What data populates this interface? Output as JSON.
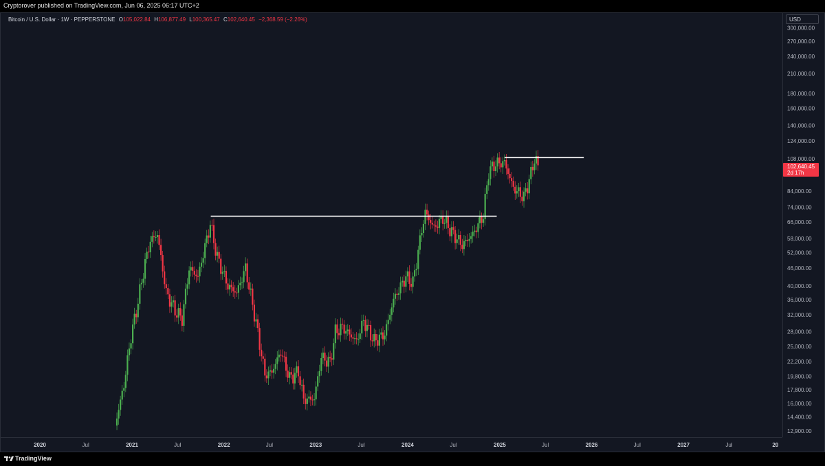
{
  "header": {
    "published_text": "Cryptorover published on TradingView.com, Jun 06, 2025 06:17 UTC+2"
  },
  "legend": {
    "symbol": "Bitcoin / U.S. Dollar · 1W · PEPPERSTONE",
    "open_label": "O",
    "open": "105,022.84",
    "high_label": "H",
    "high": "106,877.49",
    "low_label": "L",
    "low": "100,365.47",
    "close_label": "C",
    "close": "102,640.45",
    "change": "−2,368.59 (−2.26%)"
  },
  "currency_button": "USD",
  "last_price": {
    "value": "102,640.45",
    "countdown": "2d 17h"
  },
  "footer": {
    "brand": "TradingView"
  },
  "colors": {
    "background": "#131722",
    "up": "#4caf50",
    "down": "#f23645",
    "level_line": "#ffffff"
  },
  "chart_data": {
    "type": "candlestick",
    "symbol": "BTCUSD",
    "interval": "1W",
    "y_scale": "log",
    "y_ticks": [
      {
        "value": 300000,
        "label": "300,000.00"
      },
      {
        "value": 270000,
        "label": "270,000.00"
      },
      {
        "value": 240000,
        "label": "240,000.00"
      },
      {
        "value": 210000,
        "label": "210,000.00"
      },
      {
        "value": 180000,
        "label": "180,000.00"
      },
      {
        "value": 160000,
        "label": "160,000.00"
      },
      {
        "value": 140000,
        "label": "140,000.00"
      },
      {
        "value": 124000,
        "label": "124,000.00"
      },
      {
        "value": 108000,
        "label": "108,000.00"
      },
      {
        "value": 84000,
        "label": "84,000.00"
      },
      {
        "value": 74000,
        "label": "74,000.00"
      },
      {
        "value": 66000,
        "label": "66,000.00"
      },
      {
        "value": 58000,
        "label": "58,000.00"
      },
      {
        "value": 52000,
        "label": "52,000.00"
      },
      {
        "value": 46000,
        "label": "46,000.00"
      },
      {
        "value": 40000,
        "label": "40,000.00"
      },
      {
        "value": 36000,
        "label": "36,000.00"
      },
      {
        "value": 32000,
        "label": "32,000.00"
      },
      {
        "value": 28000,
        "label": "28,000.00"
      },
      {
        "value": 25000,
        "label": "25,000.00"
      },
      {
        "value": 22200,
        "label": "22,200.00"
      },
      {
        "value": 19800,
        "label": "19,800.00"
      },
      {
        "value": 17800,
        "label": "17,800.00"
      },
      {
        "value": 16000,
        "label": "16,000.00"
      },
      {
        "value": 14400,
        "label": "14,400.00"
      },
      {
        "value": 12900,
        "label": "12,900.00"
      }
    ],
    "x_ticks": [
      {
        "date": "2020-01-01",
        "label": "2020",
        "major": true
      },
      {
        "date": "2020-07-01",
        "label": "Jul",
        "major": false
      },
      {
        "date": "2021-01-01",
        "label": "2021",
        "major": true
      },
      {
        "date": "2021-07-01",
        "label": "Jul",
        "major": false
      },
      {
        "date": "2022-01-01",
        "label": "2022",
        "major": true
      },
      {
        "date": "2022-07-01",
        "label": "Jul",
        "major": false
      },
      {
        "date": "2023-01-01",
        "label": "2023",
        "major": true
      },
      {
        "date": "2023-07-01",
        "label": "Jul",
        "major": false
      },
      {
        "date": "2024-01-01",
        "label": "2024",
        "major": true
      },
      {
        "date": "2024-07-01",
        "label": "Jul",
        "major": false
      },
      {
        "date": "2025-01-01",
        "label": "2025",
        "major": true
      },
      {
        "date": "2025-07-01",
        "label": "Jul",
        "major": false
      },
      {
        "date": "2026-01-01",
        "label": "2026",
        "major": true
      },
      {
        "date": "2026-07-01",
        "label": "Jul",
        "major": false
      },
      {
        "date": "2027-01-01",
        "label": "2027",
        "major": true
      },
      {
        "date": "2027-07-01",
        "label": "Jul",
        "major": false
      },
      {
        "date": "2028-01-01",
        "label": "20",
        "major": true
      }
    ],
    "price_path": [
      [
        "2020-10-26",
        13500
      ],
      [
        "2020-11-30",
        18500
      ],
      [
        "2020-12-28",
        27000
      ],
      [
        "2021-01-18",
        33000
      ],
      [
        "2021-02-22",
        48000
      ],
      [
        "2021-03-15",
        57000
      ],
      [
        "2021-04-12",
        60000
      ],
      [
        "2021-05-17",
        38000
      ],
      [
        "2021-06-21",
        33000
      ],
      [
        "2021-07-19",
        31000
      ],
      [
        "2021-08-16",
        46000
      ],
      [
        "2021-09-20",
        43000
      ],
      [
        "2021-11-08",
        65000
      ],
      [
        "2021-12-06",
        50000
      ],
      [
        "2022-01-17",
        40000
      ],
      [
        "2022-02-21",
        38000
      ],
      [
        "2022-03-28",
        46000
      ],
      [
        "2022-05-09",
        30000
      ],
      [
        "2022-06-13",
        20000
      ],
      [
        "2022-07-11",
        20500
      ],
      [
        "2022-08-15",
        24000
      ],
      [
        "2022-09-19",
        19500
      ],
      [
        "2022-10-24",
        20500
      ],
      [
        "2022-11-14",
        16500
      ],
      [
        "2022-12-26",
        16600
      ],
      [
        "2023-01-23",
        23000
      ],
      [
        "2023-02-27",
        22000
      ],
      [
        "2023-03-20",
        28000
      ],
      [
        "2023-04-17",
        29000
      ],
      [
        "2023-06-12",
        26000
      ],
      [
        "2023-07-10",
        30500
      ],
      [
        "2023-08-21",
        26000
      ],
      [
        "2023-10-02",
        27500
      ],
      [
        "2023-11-06",
        36000
      ],
      [
        "2023-12-25",
        43000
      ],
      [
        "2024-01-22",
        41000
      ],
      [
        "2024-02-26",
        62000
      ],
      [
        "2024-03-11",
        71000
      ],
      [
        "2024-04-15",
        63000
      ],
      [
        "2024-05-20",
        68000
      ],
      [
        "2024-06-24",
        61000
      ],
      [
        "2024-08-05",
        55000
      ],
      [
        "2024-09-16",
        60000
      ],
      [
        "2024-10-28",
        69500
      ],
      [
        "2024-11-18",
        98000
      ],
      [
        "2024-12-16",
        104000
      ],
      [
        "2025-01-20",
        105000
      ],
      [
        "2025-02-24",
        86000
      ],
      [
        "2025-04-07",
        80000
      ],
      [
        "2025-05-05",
        96000
      ],
      [
        "2025-05-19",
        108000
      ],
      [
        "2025-06-06",
        102640
      ]
    ],
    "horizontal_lines": [
      {
        "price": 69000,
        "from": "2021-11-10",
        "to": "2024-12-20"
      },
      {
        "price": 109000,
        "from": "2025-01-20",
        "to": "2025-12-01"
      }
    ],
    "last_price": 102640.45
  }
}
